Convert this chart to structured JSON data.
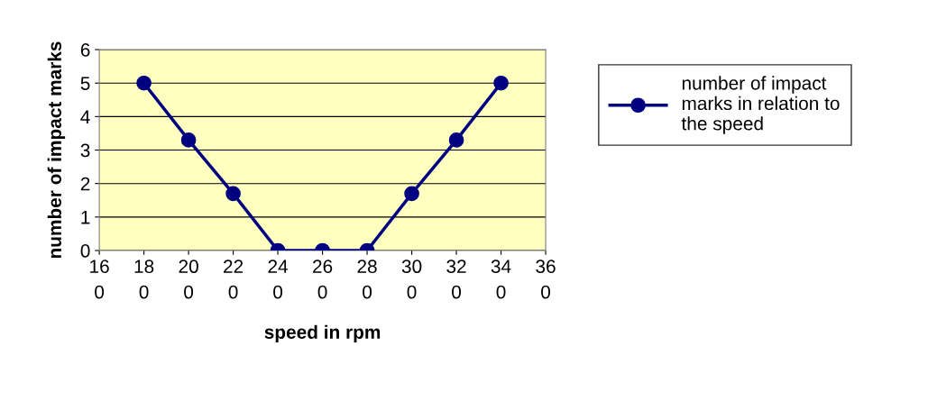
{
  "chart_data": {
    "type": "line",
    "xlabel": "speed in rpm",
    "ylabel": "number of impact marks",
    "categories": [
      "16\n0",
      "18\n0",
      "20\n0",
      "22\n0",
      "24\n0",
      "26\n0",
      "28\n0",
      "30\n0",
      "32\n0",
      "34\n0",
      "36\n0"
    ],
    "series": [
      {
        "name": "number of impact\nmarks in relation to\nthe speed",
        "color": "#000080",
        "values": [
          null,
          5,
          3.3,
          1.7,
          0,
          0,
          0,
          1.7,
          3.3,
          5,
          null
        ]
      }
    ],
    "ylim": [
      0,
      6
    ],
    "yticks": [
      0,
      1,
      2,
      3,
      4,
      5,
      6
    ],
    "grid": "y",
    "legend": "right",
    "marker": "circle",
    "line_style": "solid"
  }
}
